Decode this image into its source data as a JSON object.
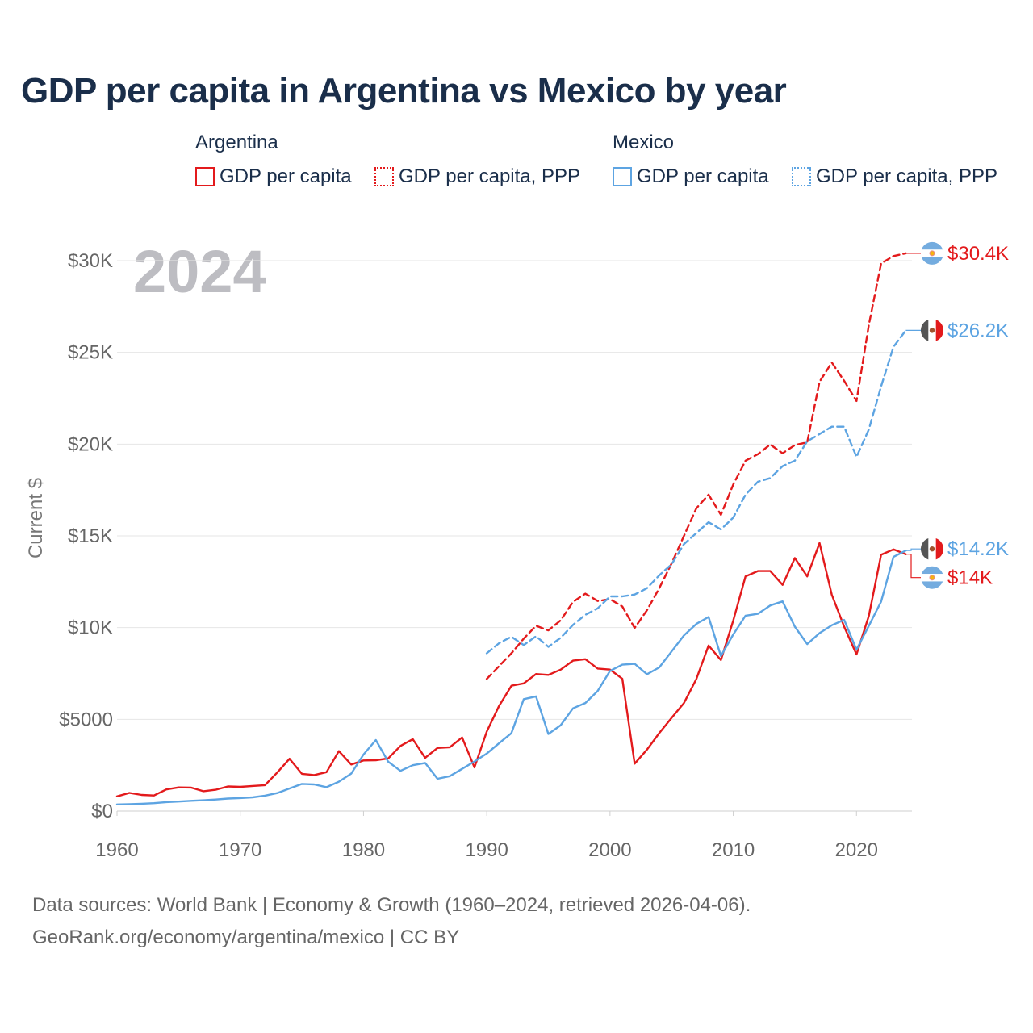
{
  "chart_data": {
    "type": "line",
    "title": "GDP per capita in Argentina vs Mexico by year",
    "year_watermark": "2024",
    "xlabel": "",
    "ylabel": "Current $",
    "xlim": [
      1960,
      2024.5
    ],
    "ylim": [
      0,
      30000
    ],
    "grid": true,
    "x_ticks": [
      1960,
      1970,
      1980,
      1990,
      2000,
      2010,
      2020
    ],
    "x_tick_labels": [
      "1960",
      "1970",
      "1980",
      "1990",
      "2000",
      "2010",
      "2020"
    ],
    "y_ticks": [
      0,
      5000,
      10000,
      15000,
      20000,
      25000,
      30000
    ],
    "y_tick_labels": [
      "$0",
      "$5000",
      "$10K",
      "$15K",
      "$20K",
      "$25K",
      "$30K"
    ],
    "legend": {
      "groups": [
        {
          "title": "Argentina",
          "items": [
            "GDP per capita",
            "GDP per capita, PPP"
          ]
        },
        {
          "title": "Mexico",
          "items": [
            "GDP per capita",
            "GDP per capita, PPP"
          ]
        }
      ]
    },
    "series": [
      {
        "name": "Argentina GDP per capita",
        "color": "#e31a1c",
        "style": "solid",
        "start_year": 1960,
        "values": [
          800,
          990,
          880,
          850,
          1180,
          1290,
          1280,
          1080,
          1160,
          1340,
          1320,
          1370,
          1410,
          2100,
          2850,
          2030,
          1960,
          2120,
          3270,
          2540,
          2760,
          2770,
          2870,
          3550,
          3920,
          2900,
          3440,
          3480,
          4010,
          2380,
          4330,
          5730,
          6830,
          6960,
          7470,
          7420,
          7710,
          8200,
          8280,
          7770,
          7710,
          7210,
          2580,
          3350,
          4250,
          5080,
          5890,
          7190,
          9020,
          8230,
          10390,
          12790,
          13080,
          13080,
          12330,
          13790,
          12790,
          14610,
          11790,
          10050,
          8540,
          10640,
          13970,
          14260,
          14000
        ],
        "end_label": "$14K"
      },
      {
        "name": "Argentina GDP per capita, PPP",
        "color": "#e31a1c",
        "style": "dashed",
        "start_year": 1990,
        "values": [
          7200,
          7900,
          8600,
          9400,
          10100,
          9850,
          10400,
          11400,
          11850,
          11450,
          11550,
          11150,
          9980,
          10950,
          12150,
          13500,
          15000,
          16500,
          17250,
          16150,
          17800,
          19100,
          19450,
          19980,
          19500,
          19950,
          20100,
          23400,
          24450,
          23450,
          22350,
          26500,
          29850,
          30250,
          30400
        ],
        "end_label": "$30.4K"
      },
      {
        "name": "Mexico GDP per capita",
        "color": "#5da4e2",
        "style": "solid",
        "start_year": 1960,
        "values": [
          360,
          380,
          400,
          430,
          490,
          520,
          560,
          590,
          630,
          680,
          710,
          750,
          840,
          980,
          1230,
          1480,
          1450,
          1300,
          1600,
          2040,
          3080,
          3870,
          2690,
          2190,
          2500,
          2620,
          1760,
          1900,
          2300,
          2700,
          3130,
          3700,
          4250,
          6100,
          6250,
          4200,
          4680,
          5600,
          5890,
          6550,
          7640,
          7980,
          8030,
          7460,
          7830,
          8700,
          9570,
          10200,
          10580,
          8450,
          9630,
          10650,
          10750,
          11210,
          11430,
          10050,
          9100,
          9700,
          10130,
          10420,
          8800,
          10100,
          11420,
          13850,
          14200
        ],
        "end_label": "$14.2K"
      },
      {
        "name": "Mexico GDP per capita, PPP",
        "color": "#5da4e2",
        "style": "dashed",
        "start_year": 1990,
        "values": [
          8600,
          9150,
          9500,
          9050,
          9530,
          8950,
          9450,
          10150,
          10700,
          11050,
          11700,
          11700,
          11800,
          12150,
          12850,
          13450,
          14550,
          15150,
          15750,
          15350,
          16000,
          17250,
          17950,
          18150,
          18800,
          19100,
          20150,
          20550,
          20950,
          20950,
          19300,
          20800,
          23150,
          25300,
          26200
        ],
        "end_label": "$26.2K"
      }
    ]
  },
  "footer": {
    "line1": "Data sources: World Bank | Economy & Growth (1960–2024, retrieved 2026-04-06).",
    "line2": "GeoRank.org/economy/argentina/mexico | CC BY"
  }
}
